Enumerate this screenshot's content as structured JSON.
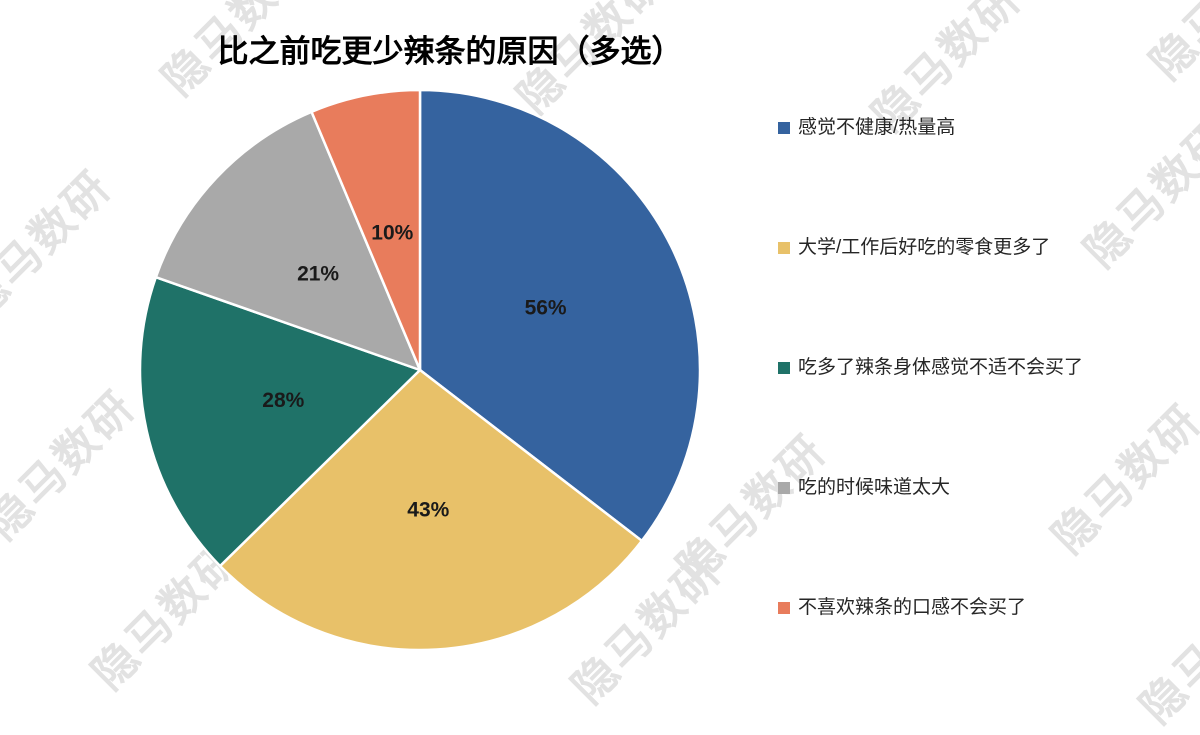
{
  "title": "比之前吃更少辣条的原因（多选）",
  "watermark": {
    "text": "隐马数研"
  },
  "chart_data": {
    "type": "pie",
    "title": "比之前吃更少辣条的原因（多选）",
    "categories": [
      "感觉不健康/热量高",
      "大学/工作后好吃的零食更多了",
      "吃多了辣条身体感觉不适不会买了",
      "吃的时候味道太大",
      "不喜欢辣条的口感不会买了"
    ],
    "values": [
      56,
      43,
      28,
      21,
      10
    ],
    "labels": [
      "56%",
      "43%",
      "28%",
      "21%",
      "10%"
    ],
    "value_unit": "%",
    "colors": [
      "#35639F",
      "#E8C169",
      "#1F7268",
      "#A9A9A9",
      "#E87C5C"
    ],
    "legend_position": "right",
    "label_position": "inside",
    "start_angle_deg": 0,
    "direction": "clockwise"
  }
}
